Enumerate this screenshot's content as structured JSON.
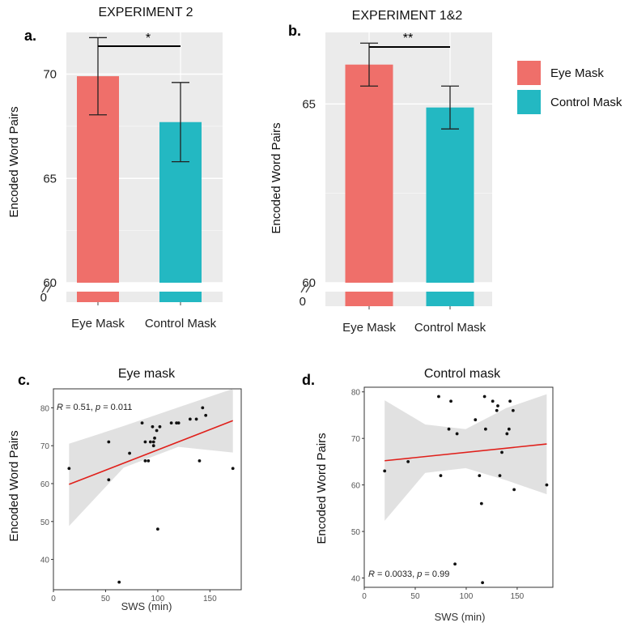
{
  "chart_data": [
    {
      "type": "bar",
      "id": "A",
      "panel_label": "a.",
      "title": "EXPERIMENT 2",
      "categories": [
        "Eye Mask",
        "Control Mask"
      ],
      "values": [
        69.9,
        67.7
      ],
      "errors": [
        1.85,
        1.9
      ],
      "colors": [
        "#ef6f6a",
        "#23b8c2"
      ],
      "ylabel": "Encoded Word Pairs",
      "ylim": [
        60,
        72
      ],
      "yticks": [
        "60",
        "65",
        "70"
      ],
      "lower_tick": "0",
      "significance": "*"
    },
    {
      "type": "bar",
      "id": "B",
      "panel_label": "b.",
      "title": "EXPERIMENT 1&2",
      "categories": [
        "Eye Mask",
        "Control Mask"
      ],
      "values": [
        66.1,
        64.9
      ],
      "errors": [
        0.6,
        0.6
      ],
      "colors": [
        "#ef6f6a",
        "#23b8c2"
      ],
      "ylabel": "Encoded Word Pairs",
      "ylim": [
        60,
        67
      ],
      "yticks": [
        "60",
        "65"
      ],
      "lower_tick": "0",
      "significance": "**"
    },
    {
      "type": "scatter",
      "id": "C",
      "panel_label": "c.",
      "title": "Eye mask",
      "xlabel": "SWS (min)",
      "ylabel": "Encoded Word Pairs",
      "xlim": [
        0,
        180
      ],
      "ylim": [
        32,
        85
      ],
      "xticks": [
        "0",
        "50",
        "100",
        "150"
      ],
      "yticks": [
        "40",
        "50",
        "60",
        "70",
        "80"
      ],
      "annotation": {
        "r_label": "R",
        "r_text": " = 0.51, ",
        "p_label": "p",
        "p_text": " = 0.011"
      },
      "points": [
        [
          15,
          64
        ],
        [
          53,
          71
        ],
        [
          53,
          61
        ],
        [
          63,
          34
        ],
        [
          73,
          68
        ],
        [
          85,
          76
        ],
        [
          88,
          71
        ],
        [
          88,
          66
        ],
        [
          91,
          66
        ],
        [
          93,
          71
        ],
        [
          95,
          75
        ],
        [
          96,
          71
        ],
        [
          96,
          70
        ],
        [
          97,
          72
        ],
        [
          99,
          74
        ],
        [
          100,
          48
        ],
        [
          102,
          75
        ],
        [
          113,
          76
        ],
        [
          118,
          76
        ],
        [
          120,
          76
        ],
        [
          131,
          77
        ],
        [
          137,
          77
        ],
        [
          140,
          66
        ],
        [
          143,
          80
        ],
        [
          146,
          78
        ],
        [
          172,
          64
        ]
      ],
      "trend": {
        "x": [
          15,
          172
        ],
        "y": [
          59.8,
          76.6
        ]
      },
      "band_upper": [
        70.5,
        75.2,
        80.1,
        85.0
      ],
      "band_lower": [
        48.8,
        64.2,
        69.7,
        68.2
      ]
    },
    {
      "type": "scatter",
      "id": "D",
      "panel_label": "d.",
      "title": "Control mask",
      "xlabel": "SWS (min)",
      "ylabel": "Encoded Word Pairs",
      "xlim": [
        0,
        185
      ],
      "ylim": [
        38,
        81
      ],
      "xticks": [
        "0",
        "50",
        "100",
        "150"
      ],
      "yticks": [
        "40",
        "50",
        "60",
        "70",
        "80"
      ],
      "annotation": {
        "r_label": "R",
        "r_text": " = 0.0033, ",
        "p_label": "p",
        "p_text": " = 0.99"
      },
      "points": [
        [
          20,
          63
        ],
        [
          43,
          65
        ],
        [
          73,
          79
        ],
        [
          75,
          62
        ],
        [
          83,
          72
        ],
        [
          85,
          78
        ],
        [
          89,
          43
        ],
        [
          91,
          71
        ],
        [
          109,
          74
        ],
        [
          113,
          62
        ],
        [
          115,
          56
        ],
        [
          116,
          39
        ],
        [
          118,
          79
        ],
        [
          119,
          72
        ],
        [
          126,
          78
        ],
        [
          130,
          76
        ],
        [
          131,
          77
        ],
        [
          133,
          62
        ],
        [
          135,
          67
        ],
        [
          140,
          71
        ],
        [
          142,
          72
        ],
        [
          143,
          78
        ],
        [
          147,
          59
        ],
        [
          146,
          76
        ],
        [
          179,
          60
        ]
      ],
      "trend": {
        "x": [
          20,
          179
        ],
        "y": [
          65.2,
          68.8
        ]
      },
      "band_upper": [
        78.2,
        73.0,
        72.0,
        76.5,
        79.5
      ],
      "band_lower": [
        52.3,
        62.6,
        63.6,
        61.0,
        58.0
      ]
    }
  ],
  "legend": {
    "items": [
      {
        "label": "Eye Mask",
        "color": "#ef6f6a"
      },
      {
        "label": "Control Mask",
        "color": "#23b8c2"
      }
    ]
  }
}
